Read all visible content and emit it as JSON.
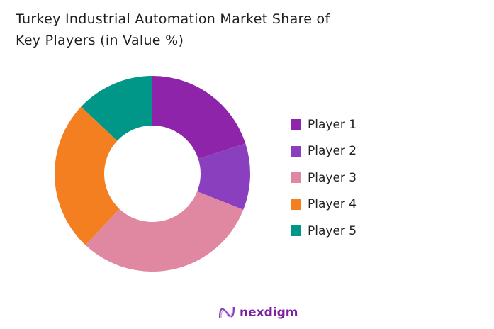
{
  "chart_data": {
    "type": "pie",
    "variant": "donut",
    "title": "Turkey Industrial Automation Market Share of Key Players (in Value %)",
    "categories": [
      "Player 1",
      "Player 2",
      "Player 3",
      "Player 4",
      "Player 5"
    ],
    "values": [
      20,
      11,
      31,
      25,
      13
    ],
    "colors": [
      "#8e24aa",
      "#8a3fbf",
      "#e088a2",
      "#f47f20",
      "#009688"
    ],
    "legend_position": "right",
    "start_angle": "top, clockwise"
  },
  "brand": {
    "name": "nexdigm",
    "color": "#7a1fa0"
  }
}
